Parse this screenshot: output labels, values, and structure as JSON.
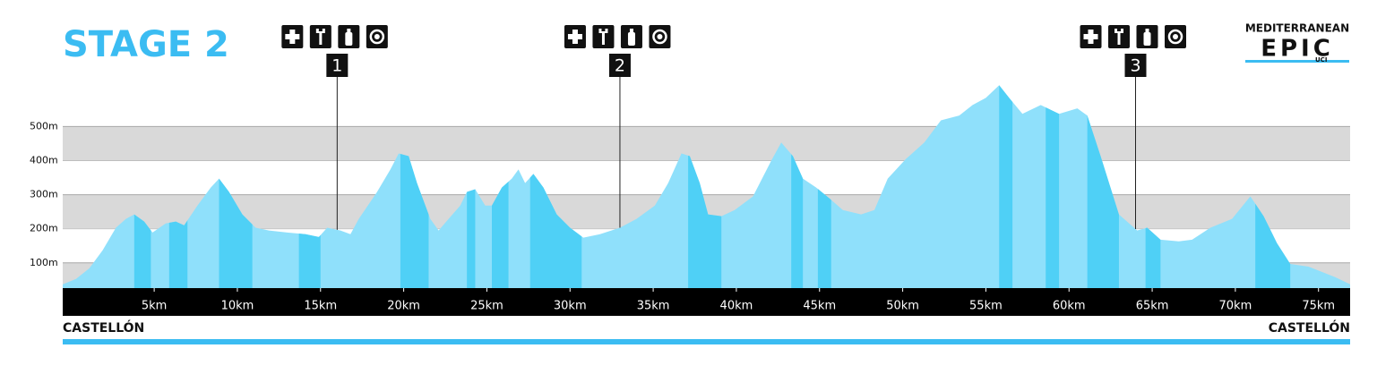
{
  "chart_data": {
    "type": "area",
    "title": "STAGE 2",
    "logo": {
      "line1": "MEDITERRANEAN",
      "line2": "EPIC",
      "badge": "UCI"
    },
    "start_label": "CASTELLÓN",
    "end_label": "CASTELLÓN",
    "color": "#8fe0fb",
    "climb_color": "#4fd0f6",
    "band_color": "#d9d9d9",
    "x": [
      -0.5,
      0.3,
      1.1,
      1.9,
      2.7,
      3.3,
      3.8,
      4.4,
      4.9,
      5.7,
      6.3,
      6.8,
      7.6,
      8.4,
      8.9,
      9.5,
      10.3,
      11.1,
      11.9,
      13.0,
      14.1,
      14.9,
      15.4,
      16.2,
      16.8,
      17.3,
      18.4,
      19.2,
      19.7,
      20.3,
      20.8,
      21.6,
      22.1,
      22.7,
      23.4,
      23.8,
      24.3,
      24.9,
      25.3,
      25.9,
      26.5,
      26.9,
      27.3,
      27.8,
      28.4,
      29.2,
      30.0,
      30.8,
      31.8,
      33.0,
      34.0,
      35.1,
      35.9,
      36.7,
      37.2,
      37.8,
      38.3,
      39.1,
      39.9,
      41.0,
      42.1,
      42.7,
      43.4,
      44.0,
      44.8,
      45.6,
      46.4,
      47.5,
      48.3,
      49.1,
      50.2,
      51.3,
      52.3,
      53.4,
      54.2,
      55.0,
      55.8,
      56.4,
      57.2,
      58.3,
      59.4,
      60.5,
      61.1,
      61.9,
      63.0,
      64.1,
      64.7,
      65.5,
      66.6,
      67.4,
      68.5,
      69.8,
      70.9,
      71.7,
      72.5,
      73.3,
      74.4,
      76.0,
      76.9
    ],
    "values": [
      37,
      53,
      84,
      137,
      203,
      229,
      242,
      221,
      189,
      216,
      221,
      210,
      268,
      321,
      347,
      308,
      242,
      203,
      195,
      189,
      184,
      176,
      203,
      195,
      184,
      229,
      308,
      374,
      421,
      413,
      334,
      229,
      195,
      229,
      268,
      308,
      316,
      268,
      268,
      321,
      347,
      374,
      334,
      361,
      321,
      242,
      203,
      174,
      184,
      203,
      229,
      268,
      334,
      421,
      413,
      334,
      242,
      237,
      255,
      295,
      400,
      453,
      413,
      347,
      321,
      289,
      255,
      242,
      255,
      347,
      405,
      453,
      518,
      532,
      563,
      584,
      621,
      584,
      537,
      563,
      537,
      553,
      532,
      413,
      242,
      195,
      203,
      168,
      163,
      168,
      203,
      229,
      295,
      237,
      158,
      97,
      89,
      58,
      37
    ],
    "climbs": [
      {
        "start": 3.8,
        "end": 4.8
      },
      {
        "start": 5.9,
        "end": 7.0
      },
      {
        "start": 8.9,
        "end": 10.9
      },
      {
        "start": 13.7,
        "end": 15.0
      },
      {
        "start": 19.8,
        "end": 21.5
      },
      {
        "start": 23.8,
        "end": 24.3
      },
      {
        "start": 25.3,
        "end": 26.3
      },
      {
        "start": 27.6,
        "end": 30.7
      },
      {
        "start": 37.1,
        "end": 39.1
      },
      {
        "start": 43.3,
        "end": 44.0
      },
      {
        "start": 44.9,
        "end": 45.7
      },
      {
        "start": 55.8,
        "end": 56.6
      },
      {
        "start": 58.6,
        "end": 59.4
      },
      {
        "start": 61.1,
        "end": 63.0
      },
      {
        "start": 64.6,
        "end": 65.5
      },
      {
        "start": 71.2,
        "end": 73.3
      }
    ],
    "aid_stations": [
      {
        "label": "1",
        "km": 16
      },
      {
        "label": "2",
        "km": 33
      },
      {
        "label": "3",
        "km": 64
      }
    ],
    "xlim": [
      -0.5,
      76.9
    ],
    "ylim": [
      26,
      640
    ],
    "xticks": [
      {
        "value": 5,
        "label": "5km"
      },
      {
        "value": 10,
        "label": "10km"
      },
      {
        "value": 15,
        "label": "15km"
      },
      {
        "value": 20,
        "label": "20km"
      },
      {
        "value": 25,
        "label": "25km"
      },
      {
        "value": 30,
        "label": "30km"
      },
      {
        "value": 35,
        "label": "35km"
      },
      {
        "value": 40,
        "label": "40km"
      },
      {
        "value": 45,
        "label": "45km"
      },
      {
        "value": 50,
        "label": "50km"
      },
      {
        "value": 55,
        "label": "55km"
      },
      {
        "value": 60,
        "label": "60km"
      },
      {
        "value": 65,
        "label": "65km"
      },
      {
        "value": 70,
        "label": "70km"
      },
      {
        "value": 75,
        "label": "75km"
      }
    ],
    "yticks": [
      {
        "value": 100,
        "label": "100m"
      },
      {
        "value": 200,
        "label": "200m"
      },
      {
        "value": 300,
        "label": "300m"
      },
      {
        "value": 400,
        "label": "400m"
      },
      {
        "value": 500,
        "label": "500m"
      }
    ]
  }
}
